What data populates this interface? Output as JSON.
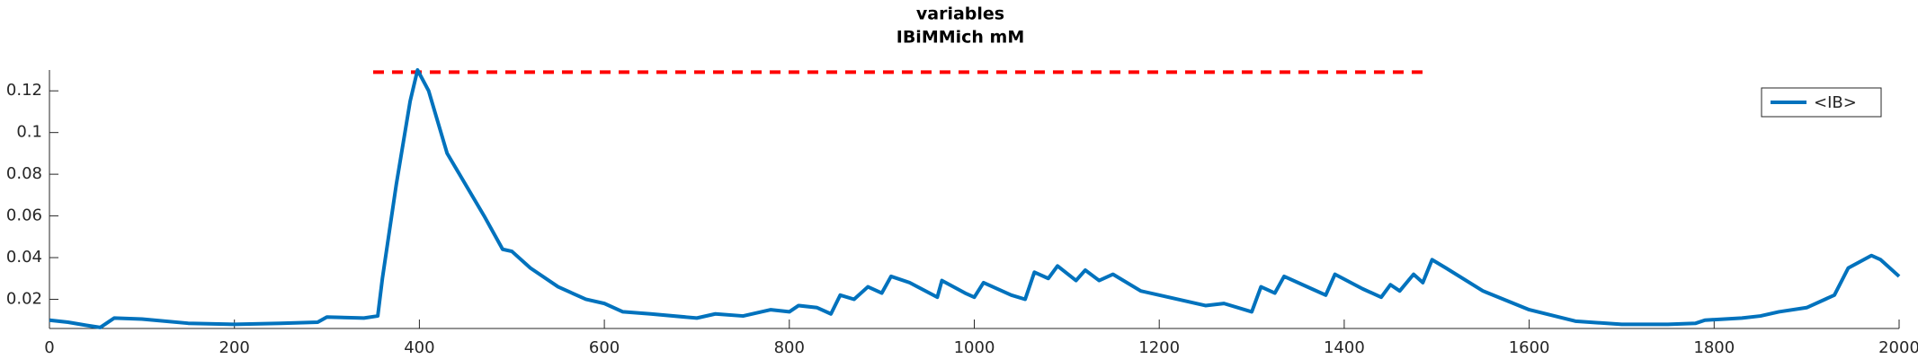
{
  "chart_data": {
    "type": "line",
    "title": "variables",
    "subtitle": "IBiMMich mM",
    "x": [
      0,
      20,
      40,
      55,
      70,
      100,
      150,
      200,
      250,
      290,
      300,
      340,
      355,
      360,
      375,
      390,
      398,
      410,
      430,
      450,
      470,
      490,
      500,
      520,
      550,
      580,
      600,
      620,
      650,
      700,
      720,
      750,
      780,
      800,
      810,
      830,
      845,
      855,
      870,
      885,
      900,
      910,
      930,
      960,
      965,
      990,
      1000,
      1010,
      1040,
      1055,
      1065,
      1080,
      1090,
      1110,
      1120,
      1135,
      1150,
      1180,
      1200,
      1250,
      1270,
      1300,
      1310,
      1325,
      1335,
      1365,
      1380,
      1390,
      1420,
      1440,
      1450,
      1460,
      1475,
      1485,
      1495,
      1510,
      1550,
      1600,
      1650,
      1700,
      1750,
      1780,
      1790,
      1830,
      1850,
      1870,
      1900,
      1930,
      1945,
      1970,
      1980,
      2000
    ],
    "series": [
      {
        "name": "<IB>",
        "color": "#0072bd",
        "values": [
          0.01,
          0.009,
          0.0075,
          0.0065,
          0.011,
          0.0105,
          0.0085,
          0.008,
          0.0085,
          0.009,
          0.0115,
          0.011,
          0.012,
          0.03,
          0.075,
          0.115,
          0.13,
          0.12,
          0.09,
          0.075,
          0.06,
          0.044,
          0.043,
          0.035,
          0.026,
          0.02,
          0.018,
          0.014,
          0.013,
          0.011,
          0.013,
          0.012,
          0.015,
          0.014,
          0.017,
          0.016,
          0.013,
          0.022,
          0.02,
          0.026,
          0.023,
          0.031,
          0.028,
          0.021,
          0.029,
          0.023,
          0.021,
          0.028,
          0.022,
          0.02,
          0.033,
          0.03,
          0.036,
          0.029,
          0.034,
          0.029,
          0.032,
          0.024,
          0.022,
          0.017,
          0.018,
          0.014,
          0.026,
          0.023,
          0.031,
          0.025,
          0.022,
          0.032,
          0.025,
          0.021,
          0.027,
          0.024,
          0.032,
          0.028,
          0.039,
          0.035,
          0.024,
          0.015,
          0.0095,
          0.008,
          0.008,
          0.0085,
          0.01,
          0.011,
          0.012,
          0.014,
          0.016,
          0.022,
          0.035,
          0.041,
          0.039,
          0.031
        ]
      }
    ],
    "threshold": {
      "x_start": 350,
      "x_end": 1490,
      "y": 0.129,
      "color": "#ff0000"
    },
    "xlim": [
      0,
      2000
    ],
    "xticks": [
      0,
      200,
      400,
      600,
      800,
      1000,
      1200,
      1400,
      1600,
      1800,
      2000
    ],
    "ylim": [
      0.006,
      0.13
    ],
    "yticks": [
      0.02,
      0.04,
      0.06,
      0.08,
      0.1,
      0.12
    ],
    "legend": "upper right"
  }
}
